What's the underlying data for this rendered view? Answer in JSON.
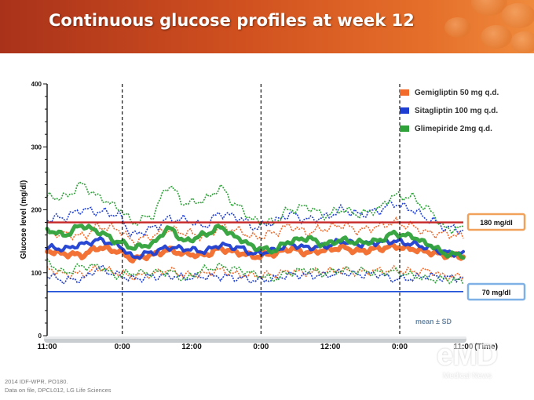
{
  "header": {
    "title": "Continuous glucose profiles at week 12"
  },
  "chart_data": {
    "type": "line",
    "title": "Continuous glucose profiles at week 12",
    "ylabel": "Glucose level  (mg/dl)",
    "xlabel": "(Time)",
    "ylim": [
      0,
      400
    ],
    "yticks": [
      "0",
      "100",
      "200",
      "300",
      "400"
    ],
    "x_tick_labels": [
      "11:00",
      "0:00",
      "12:00",
      "0:00",
      "12:00",
      "0:00",
      "11:00"
    ],
    "x_tick_hours": [
      0,
      13,
      25,
      37,
      49,
      61,
      72
    ],
    "day_boundaries_hours": [
      13,
      37,
      61
    ],
    "legend": {
      "position": "top-right"
    },
    "reference_lines": [
      {
        "label": "180 mg/dl",
        "y": 180,
        "color": "#c62828"
      },
      {
        "label": "70 mg/dl",
        "y": 70,
        "color": "#1e4fd8"
      }
    ],
    "band_note": "mean ± SD",
    "series": [
      {
        "name": "Gemigliptin 50 mg q.d.",
        "color": "#f26b2b",
        "x": [
          0,
          3,
          6,
          9,
          12,
          15,
          18,
          21,
          24,
          27,
          30,
          33,
          36,
          39,
          42,
          45,
          48,
          51,
          54,
          57,
          60,
          63,
          66,
          69,
          72
        ],
        "mean": [
          135,
          130,
          128,
          140,
          135,
          122,
          128,
          136,
          130,
          128,
          138,
          132,
          126,
          130,
          138,
          132,
          136,
          140,
          134,
          138,
          142,
          138,
          133,
          128,
          126
        ],
        "sd": [
          28,
          32,
          30,
          33,
          35,
          28,
          30,
          32,
          34,
          30,
          34,
          35,
          30,
          33,
          36,
          32,
          34,
          36,
          33,
          35,
          38,
          36,
          30,
          34,
          32
        ]
      },
      {
        "name": "Sitagliptin 100 mg q.d.",
        "color": "#1e3fd2",
        "x": [
          0,
          3,
          6,
          9,
          12,
          15,
          18,
          21,
          24,
          27,
          30,
          33,
          36,
          39,
          42,
          45,
          48,
          51,
          54,
          57,
          60,
          63,
          66,
          69,
          72
        ],
        "mean": [
          140,
          138,
          145,
          152,
          145,
          125,
          132,
          140,
          138,
          134,
          144,
          140,
          130,
          135,
          145,
          140,
          142,
          150,
          145,
          148,
          150,
          146,
          140,
          132,
          130
        ],
        "sd": [
          45,
          50,
          55,
          45,
          48,
          35,
          38,
          45,
          46,
          40,
          50,
          48,
          42,
          45,
          48,
          44,
          46,
          50,
          48,
          50,
          60,
          55,
          45,
          40,
          38
        ]
      },
      {
        "name": "Glimepiride 2mg q.d.",
        "color": "#2fa23a",
        "x": [
          0,
          3,
          6,
          9,
          12,
          15,
          18,
          21,
          24,
          27,
          30,
          33,
          36,
          39,
          42,
          45,
          48,
          51,
          54,
          57,
          60,
          63,
          66,
          69,
          72
        ],
        "mean": [
          168,
          160,
          175,
          165,
          150,
          140,
          145,
          170,
          150,
          160,
          172,
          155,
          140,
          135,
          150,
          155,
          145,
          152,
          148,
          150,
          162,
          158,
          145,
          130,
          128
        ],
        "sd": [
          52,
          60,
          65,
          55,
          55,
          40,
          45,
          68,
          60,
          55,
          62,
          50,
          42,
          45,
          50,
          50,
          46,
          48,
          45,
          50,
          60,
          62,
          55,
          40,
          42
        ]
      }
    ]
  },
  "footnotes": [
    "2014 IDF-WPR, PO180.",
    "Data on file, DPCL012, LG Life Sciences"
  ],
  "watermark": {
    "logo": "eMD",
    "sub": "Medical News"
  }
}
